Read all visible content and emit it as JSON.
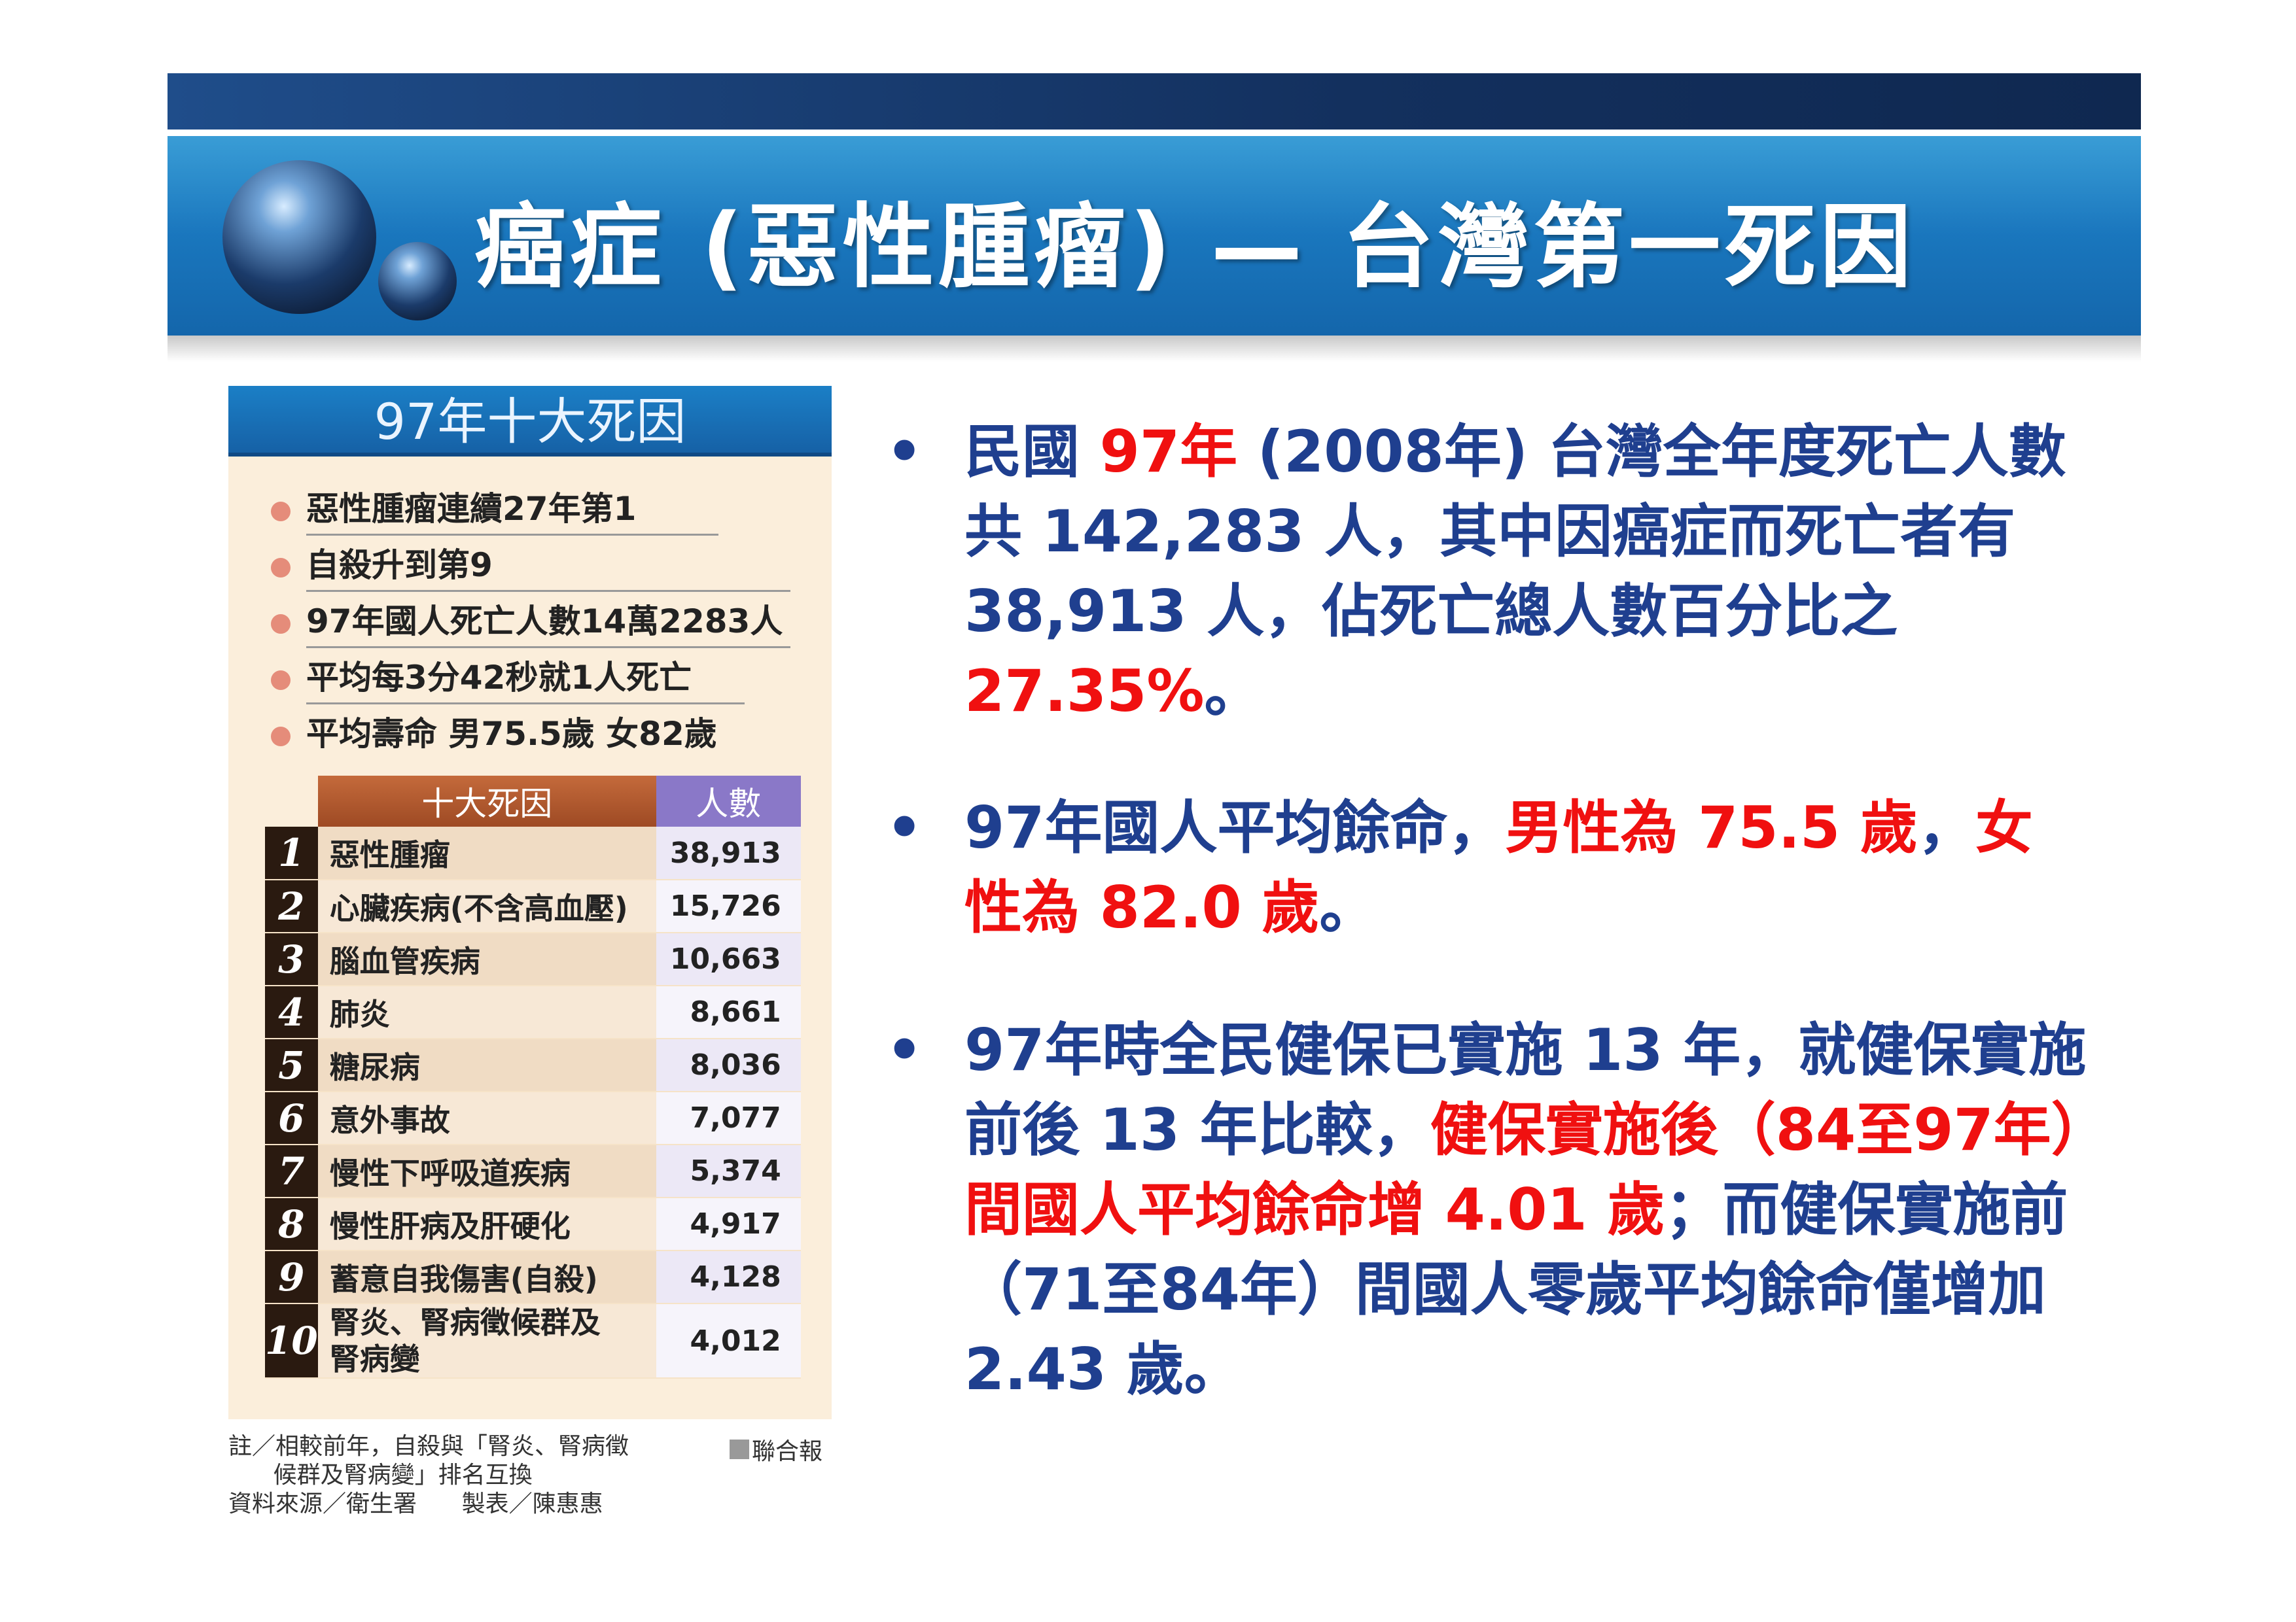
{
  "title": "癌症 (惡性腫瘤) — 台灣第一死因",
  "panel": {
    "heading": "97年十大死因",
    "facts": [
      "惡性腫瘤連續27年第1",
      "自殺升到第9",
      "97年國人死亡人數14萬2283人",
      "平均每3分42秒就1人死亡",
      "平均壽命 男75.5歲 女82歲"
    ],
    "table": {
      "headers": [
        "十大死因",
        "人數"
      ],
      "rows": [
        {
          "rank": "1",
          "cause": "惡性腫瘤",
          "count": "38,913"
        },
        {
          "rank": "2",
          "cause": "心臟疾病(不含高血壓)",
          "count": "15,726"
        },
        {
          "rank": "3",
          "cause": "腦血管疾病",
          "count": "10,663"
        },
        {
          "rank": "4",
          "cause": "肺炎",
          "count": "8,661"
        },
        {
          "rank": "5",
          "cause": "糖尿病",
          "count": "8,036"
        },
        {
          "rank": "6",
          "cause": "意外事故",
          "count": "7,077"
        },
        {
          "rank": "7",
          "cause": "慢性下呼吸道疾病",
          "count": "5,374"
        },
        {
          "rank": "8",
          "cause": "慢性肝病及肝硬化",
          "count": "4,917"
        },
        {
          "rank": "9",
          "cause": "蓄意自我傷害(自殺)",
          "count": "4,128"
        },
        {
          "rank": "10",
          "cause": "腎炎、腎病徵候群及腎病變",
          "count": "4,012"
        }
      ]
    },
    "note": "註／相較前年，自殺與「腎炎、腎病徵\n      候群及腎病變」排名互換\n資料來源／衛生署      製表／陳惠惠",
    "source": "聯合報"
  },
  "bullets": [
    {
      "segments": [
        {
          "t": "民國 ",
          "red": false
        },
        {
          "t": "97年",
          "red": true
        },
        {
          "t": " (2008年) 台灣全年度死亡人數共 142,283 人，其中因癌症而死亡者有  38,913 人，佔死亡總人數百分比之 ",
          "red": false
        },
        {
          "t": "27.35%",
          "red": true
        },
        {
          "t": "。",
          "red": false
        }
      ]
    },
    {
      "segments": [
        {
          "t": "97年國人平均餘命，",
          "red": false
        },
        {
          "t": "男性為 75.5 歲",
          "red": true
        },
        {
          "t": "，",
          "red": false
        },
        {
          "t": "女性為 82.0 歲",
          "red": true
        },
        {
          "t": "。",
          "red": false
        }
      ]
    },
    {
      "segments": [
        {
          "t": "97年時全民健保已實施 13 年，就健保實施前後 13 年比較，",
          "red": false
        },
        {
          "t": "健保實施後（84至97年）間國人平均餘命增 4.01 歲",
          "red": false,
          "red2": true
        },
        {
          "t": "；而健保實施前（71至84年）間國人零歲平均餘命僅增加  2.43 歲。",
          "red": false
        }
      ]
    }
  ],
  "colors": {
    "accent_red": "#f01010",
    "text_blue": "#1f3f8f",
    "header_blue": "#1a78bf"
  }
}
